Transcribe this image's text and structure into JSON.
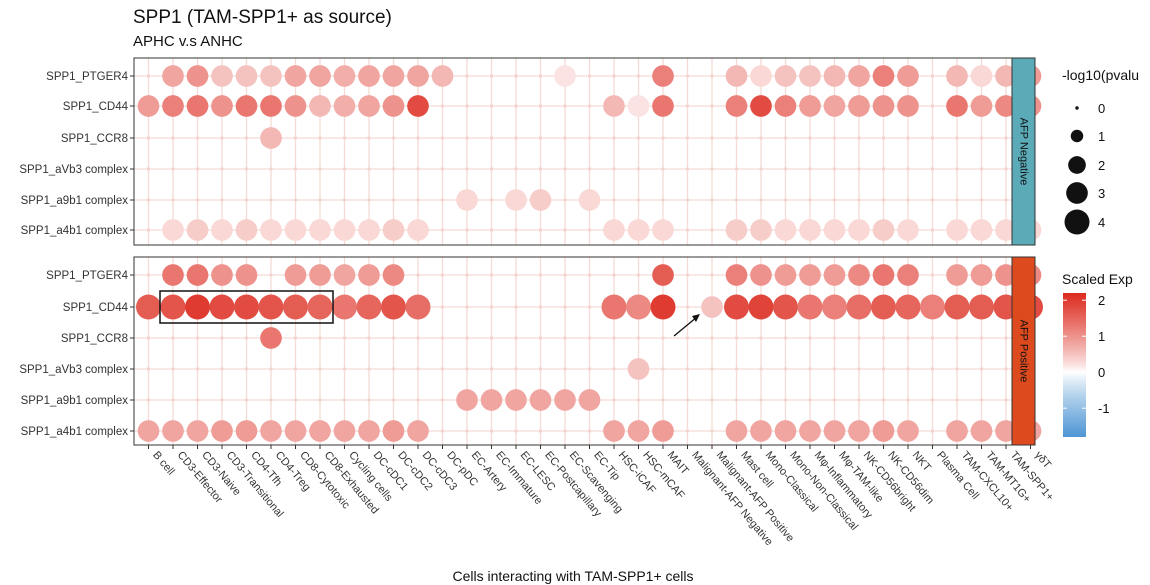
{
  "chart_data": {
    "type": "bubble-dotplot",
    "title": "SPP1 (TAM-SPP1+ as source)",
    "subtitle": "APHC v.s ANHC",
    "xlabel": "Cells interacting with TAM-SPP1+ cells",
    "ylabel": "",
    "categories": [
      "B cell",
      "CD3-Effector",
      "CD3-Naive",
      "CD3-Transitional",
      "CD4-Tfh",
      "CD4-Treg",
      "CD8-Cytotoxic",
      "CD8-Exhausted",
      "Cycling cells",
      "DC-cDC1",
      "DC-cDC2",
      "DC-cDC3",
      "DC-pDC",
      "EC-Artery",
      "EC-Immature",
      "EC-LESC",
      "EC-Postcapillary",
      "EC-Scavenging",
      "EC-Tip",
      "HSC-iCAF",
      "HSC-mCAF",
      "MAIT",
      "Malignant-AFP Negative",
      "Malignant-AFP Positive",
      "Mast cell",
      "Mono-Classical",
      "Mono-Non-Classical",
      "Mφ-Inflammatory",
      "Mφ-TAM-like",
      "NK-CD56bright",
      "NK-CD56dim",
      "NKT",
      "Plasma Cell",
      "TAM-CXCL10+",
      "TAM-MT1G+",
      "TAM-SPP1+",
      "γδT"
    ],
    "rows": [
      "SPP1_PTGER4",
      "SPP1_CD44",
      "SPP1_CCR8",
      "SPP1_aVb3 complex",
      "SPP1_a9b1 complex",
      "SPP1_a4b1 complex"
    ],
    "facets": [
      {
        "label": "AFP Negative",
        "strip_color": "#5aaab8",
        "pvalue": [
          [
            0,
            3,
            3,
            3,
            3,
            3,
            3,
            3,
            3,
            3,
            3,
            3,
            3,
            0,
            0,
            0,
            0,
            3,
            0,
            0,
            0,
            3,
            0,
            0,
            3,
            3,
            3,
            3,
            3,
            3,
            3,
            3,
            0,
            3,
            3,
            3,
            3
          ],
          [
            3,
            3,
            3,
            3,
            3,
            3,
            3,
            3,
            3,
            3,
            3,
            3,
            0,
            0,
            0,
            0,
            0,
            0,
            0,
            3,
            3,
            3,
            0,
            0,
            3,
            3,
            3,
            3,
            3,
            3,
            3,
            3,
            0,
            3,
            3,
            3,
            3
          ],
          [
            0,
            0,
            0,
            0,
            0,
            3,
            0,
            0,
            0,
            0,
            0,
            0,
            0,
            0,
            0,
            0,
            0,
            0,
            0,
            0,
            0,
            0,
            0,
            0,
            0,
            0,
            0,
            0,
            0,
            0,
            0,
            0,
            0,
            0,
            0,
            0,
            0
          ],
          [
            0,
            0,
            0,
            0,
            0,
            0,
            0,
            0,
            0,
            0,
            0,
            0,
            0,
            0,
            0,
            0,
            0,
            0,
            0,
            0,
            0,
            0,
            0,
            0,
            0,
            0,
            0,
            0,
            0,
            0,
            0,
            0,
            0,
            0,
            0,
            0,
            0
          ],
          [
            0,
            0,
            0,
            0,
            0,
            0,
            0,
            0,
            0,
            0,
            0,
            0,
            0,
            3,
            0,
            3,
            3,
            0,
            3,
            0,
            0,
            0,
            0,
            0,
            0,
            0,
            0,
            0,
            0,
            0,
            0,
            0,
            0,
            0,
            0,
            0,
            0
          ],
          [
            0,
            3,
            3,
            3,
            3,
            3,
            3,
            3,
            3,
            3,
            3,
            3,
            0,
            0,
            0,
            0,
            0,
            0,
            0,
            3,
            3,
            3,
            0,
            0,
            3,
            3,
            3,
            3,
            3,
            3,
            3,
            3,
            0,
            3,
            3,
            3,
            3
          ]
        ],
        "scaled_exp": [
          [
            0,
            0.8,
            1.0,
            0.5,
            0.5,
            0.5,
            0.8,
            0.8,
            0.7,
            0.8,
            0.8,
            0.8,
            0.6,
            0,
            0,
            0,
            0,
            0.2,
            0,
            0,
            0,
            1.2,
            0,
            0,
            0.6,
            0.3,
            0.5,
            0.5,
            0.6,
            0.8,
            1.2,
            0.9,
            0,
            0.6,
            0.3,
            0.6,
            0.9
          ],
          [
            0.9,
            1.2,
            1.3,
            1.0,
            1.3,
            1.3,
            1.0,
            0.6,
            0.7,
            0.8,
            1.0,
            1.8,
            0,
            0,
            0,
            0,
            0,
            0,
            0,
            0.6,
            0.2,
            1.3,
            0,
            0,
            1.2,
            1.8,
            1.2,
            0.9,
            0.8,
            0.9,
            1.0,
            1.0,
            0,
            1.3,
            0.9,
            1.1,
            1.0
          ],
          [
            0,
            0,
            0,
            0,
            0,
            0.6,
            0,
            0,
            0,
            0,
            0,
            0,
            0,
            0,
            0,
            0,
            0,
            0,
            0,
            0,
            0,
            0,
            0,
            0,
            0,
            0,
            0,
            0,
            0,
            0,
            0,
            0,
            0,
            0,
            0,
            0,
            0
          ],
          [
            0,
            0,
            0,
            0,
            0,
            0,
            0,
            0,
            0,
            0,
            0,
            0,
            0,
            0,
            0,
            0,
            0,
            0,
            0,
            0,
            0,
            0,
            0,
            0,
            0,
            0,
            0,
            0,
            0,
            0,
            0,
            0,
            0,
            0,
            0,
            0,
            0
          ],
          [
            0,
            0,
            0,
            0,
            0,
            0,
            0,
            0,
            0,
            0,
            0,
            0,
            0,
            0.3,
            0,
            0.3,
            0.4,
            0,
            0.3,
            0,
            0,
            0,
            0,
            0,
            0,
            0,
            0,
            0,
            0,
            0,
            0,
            0,
            0,
            0,
            0,
            0,
            0
          ],
          [
            0,
            0.3,
            0.4,
            0.3,
            0.4,
            0.3,
            0.3,
            0.3,
            0.3,
            0.3,
            0.4,
            0.3,
            0,
            0,
            0,
            0,
            0,
            0,
            0,
            0.3,
            0.3,
            0.3,
            0,
            0,
            0.4,
            0.4,
            0.3,
            0.3,
            0.3,
            0.3,
            0.4,
            0.3,
            0,
            0.3,
            0.3,
            0.3,
            0.3
          ]
        ]
      },
      {
        "label": "AFP Positive",
        "strip_color": "#dd4a1e",
        "pvalue": [
          [
            0,
            3,
            3,
            3,
            3,
            0,
            3,
            3,
            3,
            3,
            3,
            0,
            0,
            0,
            0,
            0,
            0,
            0,
            0,
            0,
            0,
            3,
            0,
            0,
            3,
            3,
            3,
            3,
            3,
            3,
            3,
            3,
            0,
            3,
            3,
            3,
            3
          ],
          [
            4,
            4,
            4,
            4,
            4,
            4,
            4,
            4,
            4,
            4,
            4,
            4,
            0,
            0,
            0,
            0,
            0,
            0,
            0,
            4,
            4,
            4,
            0,
            3,
            4,
            4,
            4,
            4,
            4,
            4,
            4,
            4,
            4,
            4,
            4,
            4,
            4
          ],
          [
            0,
            0,
            0,
            0,
            0,
            3,
            0,
            0,
            0,
            0,
            0,
            0,
            0,
            0,
            0,
            0,
            0,
            0,
            0,
            0,
            0,
            0,
            0,
            0,
            0,
            0,
            0,
            0,
            0,
            0,
            0,
            0,
            0,
            0,
            0,
            0,
            0
          ],
          [
            0,
            0,
            0,
            0,
            0,
            0,
            0,
            0,
            0,
            0,
            0,
            0,
            0,
            0,
            0,
            0,
            0,
            0,
            0,
            0,
            3,
            0,
            0,
            0,
            0,
            0,
            0,
            0,
            0,
            0,
            0,
            0,
            0,
            0,
            0,
            0,
            0
          ],
          [
            0,
            0,
            0,
            0,
            0,
            0,
            0,
            0,
            0,
            0,
            0,
            0,
            0,
            3,
            3,
            3,
            3,
            3,
            3,
            0,
            0,
            0,
            0,
            0,
            0,
            0,
            0,
            0,
            0,
            0,
            0,
            0,
            0,
            0,
            0,
            0,
            0
          ],
          [
            3,
            3,
            3,
            3,
            3,
            3,
            3,
            3,
            3,
            3,
            3,
            3,
            0,
            0,
            0,
            0,
            0,
            0,
            0,
            3,
            3,
            3,
            0,
            0,
            3,
            3,
            3,
            3,
            3,
            3,
            3,
            3,
            0,
            3,
            3,
            3,
            3
          ]
        ],
        "scaled_exp": [
          [
            0,
            1.3,
            1.3,
            1.0,
            1.0,
            0,
            0.9,
            0.9,
            0.8,
            0.9,
            1.1,
            0,
            0,
            0,
            0,
            0,
            0,
            0,
            0,
            0,
            0,
            1.6,
            0,
            0,
            1.2,
            1.0,
            0.9,
            0.9,
            0.9,
            1.1,
            1.3,
            1.2,
            0,
            0.9,
            0.9,
            1.0,
            1.1
          ],
          [
            1.6,
            1.7,
            2.0,
            1.8,
            1.8,
            1.7,
            1.6,
            1.5,
            1.3,
            1.5,
            1.7,
            1.4,
            0,
            0,
            0,
            0,
            0,
            0,
            0,
            1.3,
            1.1,
            2.0,
            0,
            0.5,
            1.8,
            1.9,
            1.7,
            1.3,
            1.2,
            1.4,
            1.6,
            1.5,
            1.2,
            1.6,
            1.6,
            1.7,
            1.8
          ],
          [
            0,
            0,
            0,
            0,
            0,
            1.3,
            0,
            0,
            0,
            0,
            0,
            0,
            0,
            0,
            0,
            0,
            0,
            0,
            0,
            0,
            0,
            0,
            0,
            0,
            0,
            0,
            0,
            0,
            0,
            0,
            0,
            0,
            0,
            0,
            0,
            0,
            0
          ],
          [
            0,
            0,
            0,
            0,
            0,
            0,
            0,
            0,
            0,
            0,
            0,
            0,
            0,
            0,
            0,
            0,
            0,
            0,
            0,
            0,
            0.5,
            0,
            0,
            0,
            0,
            0,
            0,
            0,
            0,
            0,
            0,
            0,
            0,
            0,
            0,
            0,
            0
          ],
          [
            0,
            0,
            0,
            0,
            0,
            0,
            0,
            0,
            0,
            0,
            0,
            0,
            0,
            0.8,
            0.8,
            0.8,
            0.8,
            0.8,
            0.8,
            0,
            0,
            0,
            0,
            0,
            0,
            0,
            0,
            0,
            0,
            0,
            0,
            0,
            0,
            0,
            0,
            0,
            0
          ],
          [
            0.8,
            0.8,
            0.8,
            0.9,
            0.9,
            0.8,
            0.8,
            0.8,
            0.8,
            0.8,
            0.9,
            0.8,
            0,
            0,
            0,
            0,
            0,
            0,
            0,
            0.8,
            0.8,
            0.9,
            0,
            0,
            0.8,
            0.8,
            0.8,
            0.8,
            0.8,
            0.8,
            0.9,
            0.8,
            0,
            0.8,
            0.8,
            0.8,
            0.8
          ]
        ]
      }
    ],
    "size_legend": {
      "title": "-log10(pvalu",
      "values": [
        "0",
        "1",
        "2",
        "3",
        "4"
      ]
    },
    "color_legend": {
      "title": "Scaled Exp",
      "ticks": [
        "2",
        "1",
        "0",
        "-1"
      ],
      "range": [
        -1.8,
        2.2
      ],
      "low": "#4e96d4",
      "mid": "#ffffff",
      "high": "#dc2a1e"
    },
    "highlight": {
      "facet": "AFP Positive",
      "row": "SPP1_CD44",
      "from": "CD3-Effector",
      "to": "CD8-Exhausted"
    },
    "arrow_target": {
      "facet": "AFP Positive",
      "row": "SPP1_CD44",
      "category": "Malignant-AFP Positive"
    }
  }
}
